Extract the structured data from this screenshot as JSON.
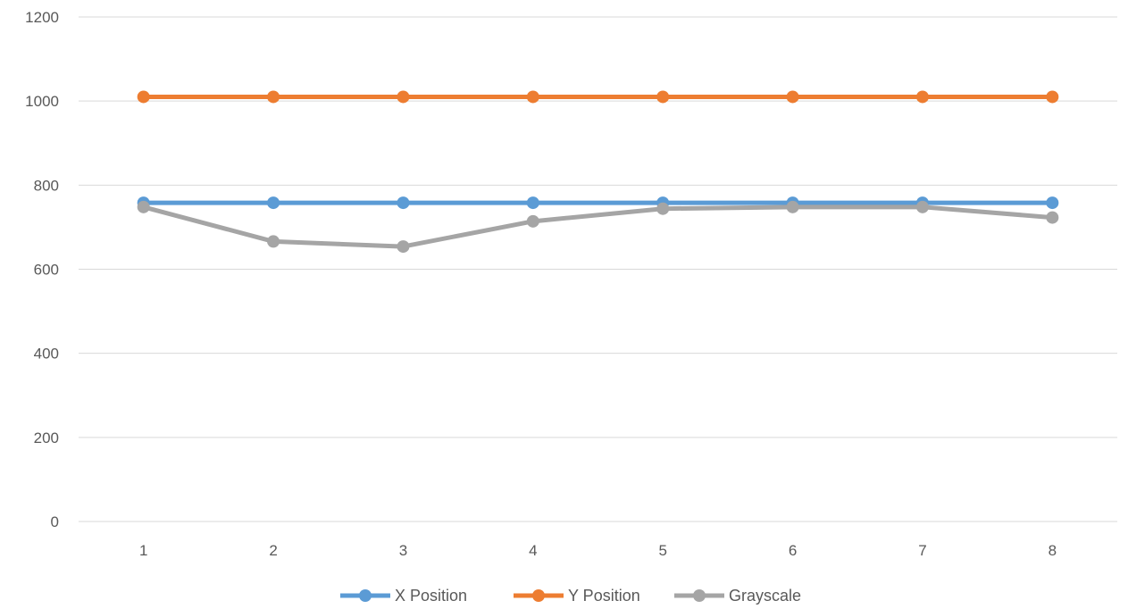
{
  "chart_data": {
    "type": "line",
    "title": "",
    "xlabel": "",
    "ylabel": "",
    "categories": [
      "1",
      "2",
      "3",
      "4",
      "5",
      "6",
      "7",
      "8"
    ],
    "ylim": [
      0,
      1200
    ],
    "yticks": [
      0,
      200,
      400,
      600,
      800,
      1000,
      1200
    ],
    "grid": true,
    "legend_position": "bottom",
    "markers": true,
    "series": [
      {
        "name": "X Position",
        "color": "#5b9bd5",
        "values": [
          758,
          758,
          758,
          758,
          758,
          758,
          758,
          758
        ]
      },
      {
        "name": "Y Position",
        "color": "#ed7d31",
        "values": [
          1010,
          1010,
          1010,
          1010,
          1010,
          1010,
          1010,
          1010
        ]
      },
      {
        "name": "Grayscale",
        "color": "#a5a5a5",
        "values": [
          748,
          666,
          654,
          714,
          744,
          748,
          748,
          723
        ]
      }
    ]
  }
}
